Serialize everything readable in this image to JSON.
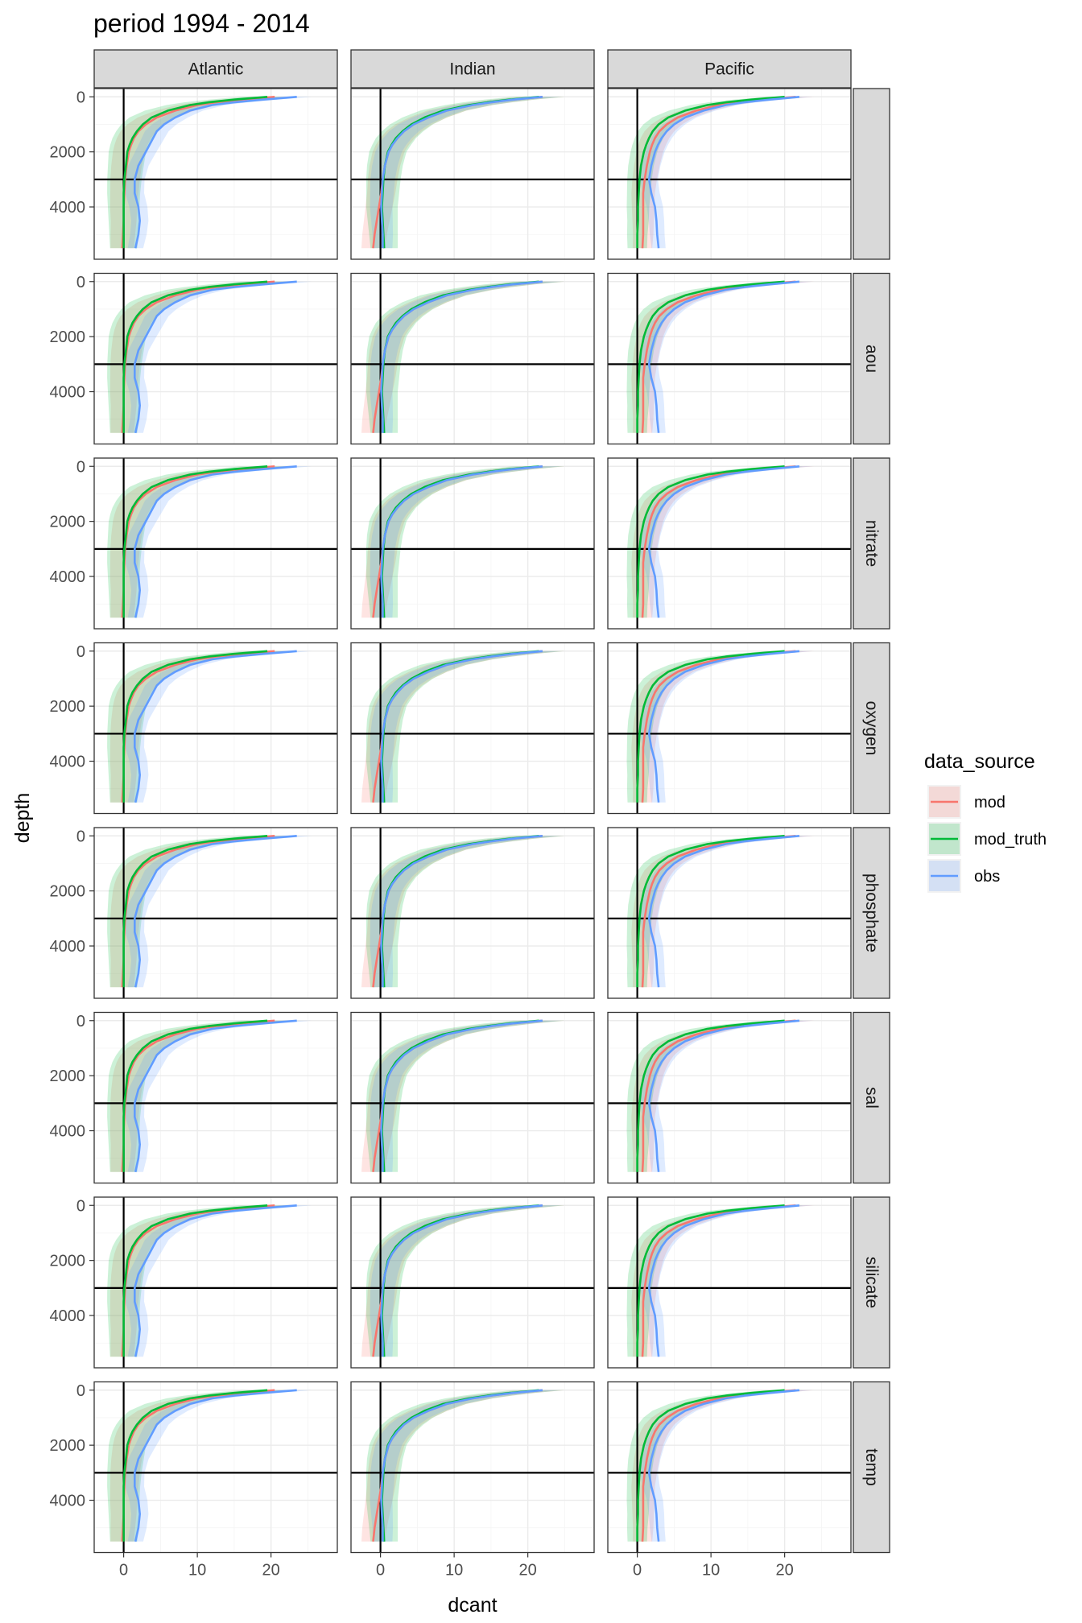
{
  "chart_data": {
    "type": "line",
    "title": "period 1994 - 2014",
    "xlabel": "dcant",
    "ylabel": "depth",
    "xlim": [
      -4,
      29
    ],
    "ylim": [
      5900,
      -300
    ],
    "y_reversed": true,
    "xticks": [
      0,
      10,
      20
    ],
    "yticks": [
      0,
      2000,
      4000
    ],
    "reference_lines": {
      "vertical_x": 0,
      "horizontal_y": 3000
    },
    "facet_cols": [
      "Atlantic",
      "Indian",
      "Pacific"
    ],
    "facet_rows": [
      "",
      "aou",
      "nitrate",
      "oxygen",
      "phosphate",
      "sal",
      "silicate",
      "temp"
    ],
    "legend": {
      "title": "data_source",
      "placement": "right",
      "items": [
        {
          "name": "mod",
          "color": "#F8766D"
        },
        {
          "name": "mod_truth",
          "color": "#00BA38"
        },
        {
          "name": "obs",
          "color": "#619CFF"
        }
      ]
    },
    "depth_levels": [
      0,
      100,
      200,
      300,
      500,
      750,
      1000,
      1250,
      1500,
      1750,
      2000,
      2500,
      3000,
      3500,
      4000,
      4500,
      5000,
      5500
    ],
    "profiles": {
      "Atlantic": {
        "mod": {
          "values": [
            20.5,
            16,
            12.5,
            10,
            7,
            4.5,
            3,
            2,
            1.4,
            1.0,
            0.7,
            0.4,
            0.2,
            0.1,
            0.0,
            0.0,
            -0.1,
            -0.2
          ],
          "spread": 3.0
        },
        "mod_truth": {
          "values": [
            19.5,
            15,
            11.5,
            9,
            6,
            3.8,
            2.6,
            1.8,
            1.2,
            0.8,
            0.5,
            0.3,
            0.1,
            0.0,
            0.0,
            0.0,
            0.0,
            0.0
          ],
          "spread": 3.5
        },
        "obs": {
          "values": [
            23.5,
            19,
            15,
            12,
            9,
            7,
            5.5,
            4.5,
            4,
            3.5,
            3,
            2,
            1.5,
            1.5,
            2,
            2.2,
            2,
            1.6
          ],
          "spread": 2.0
        }
      },
      "Indian": {
        "mod": {
          "values": [
            22,
            18,
            15,
            12.5,
            9,
            6.5,
            4.5,
            3.2,
            2.3,
            1.6,
            1.1,
            0.6,
            0.3,
            0.1,
            -0.2,
            -0.5,
            -0.8,
            -1.0
          ],
          "spread": 3.0
        },
        "mod_truth": {
          "values": [
            21.5,
            17.5,
            14.5,
            12,
            8.5,
            6,
            4.2,
            3,
            2.1,
            1.5,
            1.0,
            0.6,
            0.4,
            0.3,
            0.2,
            0.3,
            0.4,
            0.5
          ],
          "spread": 3.5
        },
        "obs": {
          "values": [
            22,
            18,
            15,
            12.5,
            9,
            6.5,
            4.5,
            3.2,
            2.3,
            1.6,
            1.1,
            0.6,
            0.3,
            0.2,
            0.1,
            0.2,
            0.3,
            0.3
          ],
          "spread": 2.5
        }
      },
      "Pacific": {
        "mod": {
          "values": [
            21.5,
            17,
            13.5,
            11,
            8,
            5.5,
            4,
            3,
            2.4,
            2,
            1.7,
            1.3,
            1.0,
            0.8,
            0.8,
            0.8,
            0.8,
            0.7
          ],
          "spread": 2.5
        },
        "mod_truth": {
          "values": [
            20,
            15.5,
            12,
            9.5,
            6.5,
            4.2,
            2.9,
            2.1,
            1.6,
            1.2,
            0.9,
            0.5,
            0.3,
            0.2,
            0.1,
            0.1,
            0.0,
            0.0
          ],
          "spread": 2.5
        },
        "obs": {
          "values": [
            22,
            18,
            14.5,
            12,
            9,
            6.5,
            5,
            4,
            3.3,
            2.8,
            2.4,
            1.9,
            1.6,
            1.9,
            2.4,
            2.6,
            2.7,
            2.9
          ],
          "spread": 1.8
        }
      }
    }
  }
}
